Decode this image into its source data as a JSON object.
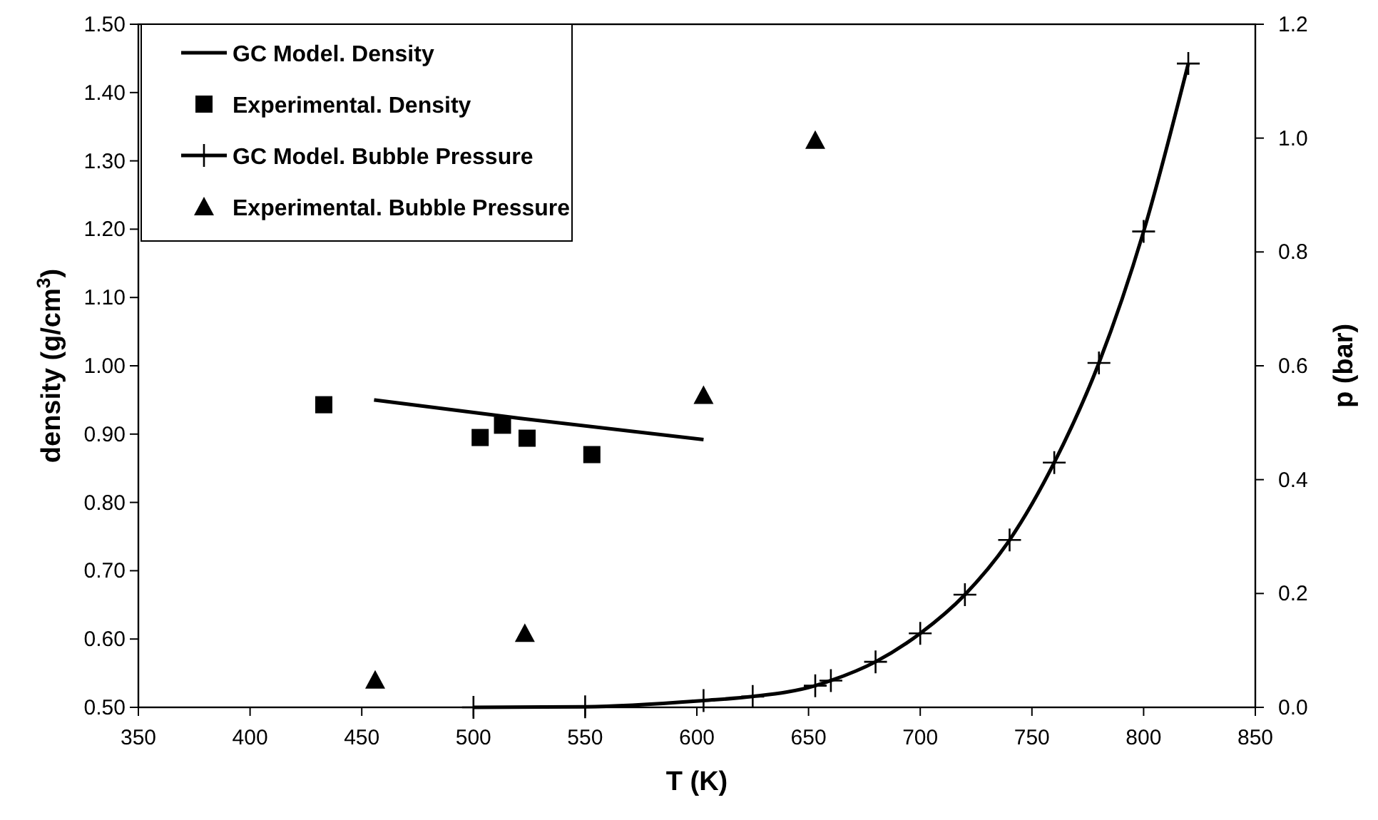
{
  "chart_data": {
    "type": "line",
    "xlabel": "T (K)",
    "ylabel": "density (g/cm$^{3}$)",
    "y2label": "p (bar)",
    "xlim": [
      350,
      850
    ],
    "xticks": [
      350,
      400,
      450,
      500,
      550,
      600,
      650,
      700,
      750,
      800,
      850
    ],
    "ylim": [
      0.5,
      1.5
    ],
    "yticks": [
      {
        "value": 0.5,
        "label": "0.50"
      },
      {
        "value": 0.6,
        "label": "0.60"
      },
      {
        "value": 0.7,
        "label": "0.70"
      },
      {
        "value": 0.8,
        "label": "0.80"
      },
      {
        "value": 0.9,
        "label": "0.90"
      },
      {
        "value": 1.0,
        "label": "1.00"
      },
      {
        "value": 1.1,
        "label": "1.10"
      },
      {
        "value": 1.2,
        "label": "1.20"
      },
      {
        "value": 1.3,
        "label": "1.30"
      },
      {
        "value": 1.4,
        "label": "1.40"
      },
      {
        "value": 1.5,
        "label": "1.50"
      }
    ],
    "y2lim": [
      0,
      1.2
    ],
    "y2ticks": [
      {
        "value": 0,
        "label": "0.0"
      },
      {
        "value": 0.2,
        "label": "0.2"
      },
      {
        "value": 0.4,
        "label": "0.4"
      },
      {
        "value": 0.6,
        "label": "0.6"
      },
      {
        "value": 0.8,
        "label": "0.8"
      },
      {
        "value": 1.0,
        "label": "1.0"
      },
      {
        "value": 1.2,
        "label": "1.2"
      }
    ],
    "grid": false,
    "legend": "top left",
    "series": [
      {
        "name": "GC Model. Density",
        "color": "#000000",
        "marker": "none",
        "x": [
          455.5,
          521,
          603
        ],
        "values": [
          0.95,
          0.923,
          0.892
        ]
      },
      {
        "name": "Experimental. Density",
        "type": "scatter",
        "color": "#000000",
        "marker": "square",
        "x": [
          433,
          503,
          513,
          524,
          553
        ],
        "values": [
          0.943,
          0.895,
          0.913,
          0.894,
          0.87
        ]
      },
      {
        "name": "GC Model. Bubble Pressure",
        "axis": "y2",
        "color": "#000000",
        "marker": "cross",
        "x": [
          500,
          550,
          603,
          625,
          653,
          660,
          680,
          700,
          720,
          740,
          760,
          780,
          800,
          820
        ],
        "values": [
          0,
          0.001,
          0.012,
          0.019,
          0.038,
          0.047,
          0.08,
          0.13,
          0.198,
          0.294,
          0.43,
          0.605,
          0.836,
          1.131
        ]
      },
      {
        "name": "Experimental. Bubble Pressure",
        "type": "scatter",
        "axis": "y2",
        "color": "#000000",
        "marker": "triangle",
        "x": [
          456,
          523,
          603,
          653
        ],
        "values": [
          0.048,
          0.13,
          0.548,
          0.996
        ]
      }
    ]
  }
}
